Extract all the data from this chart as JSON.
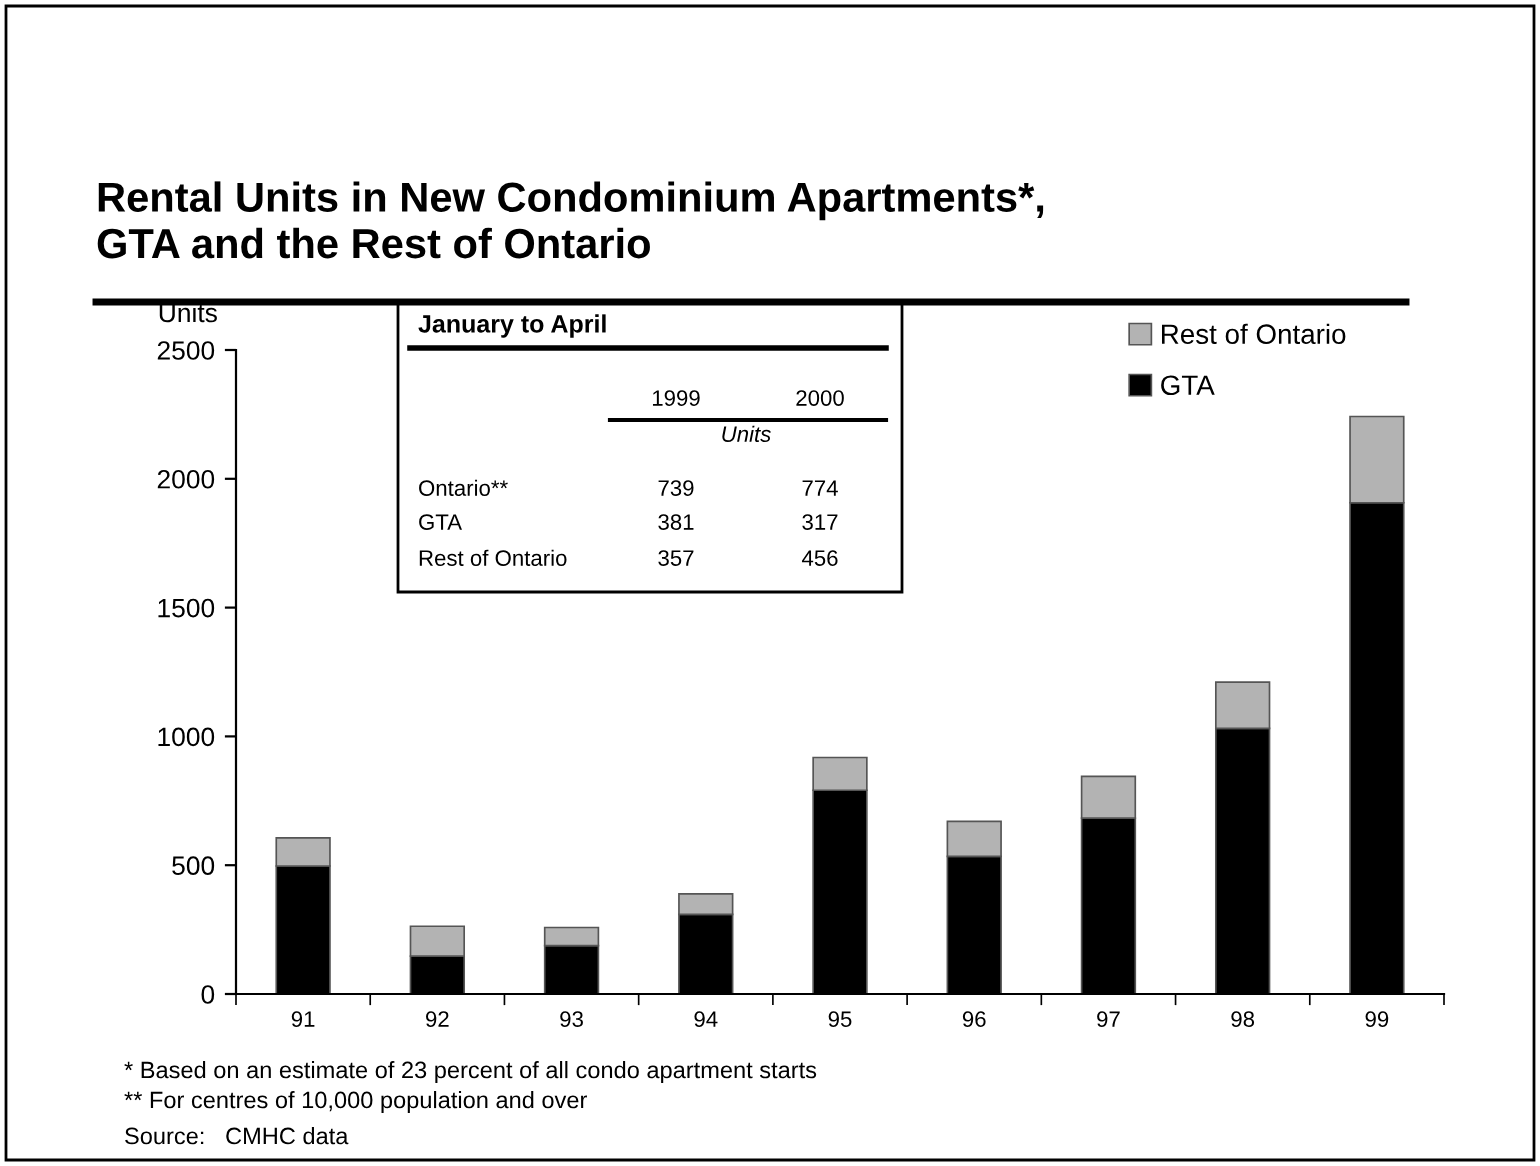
{
  "chart_data": {
    "type": "bar",
    "stacked": true,
    "title": "Rental Units in New Condominium Apartments*,\nGTA and the Rest of Ontario",
    "ylabel": "Units",
    "categories": [
      "91",
      "92",
      "93",
      "94",
      "95",
      "96",
      "97",
      "98",
      "99"
    ],
    "series": [
      {
        "name": "GTA",
        "color": "#000000",
        "values": [
          497,
          147,
          188,
          309,
          791,
          534,
          683,
          1031,
          1907
        ]
      },
      {
        "name": "Rest of Ontario",
        "color": "#b3b3b3",
        "values": [
          109,
          116,
          70,
          80,
          127,
          136,
          162,
          180,
          335
        ]
      }
    ],
    "ylim": [
      0,
      2500
    ],
    "yticks": [
      0,
      500,
      1000,
      1500,
      2000,
      2500
    ],
    "legend": "top right",
    "grid": false,
    "annotations": [
      "January to April",
      "1999",
      "2000",
      "Units",
      "Ontario**",
      "739",
      "774",
      "GTA",
      "381",
      "317",
      "Rest of Ontario",
      "357",
      "456",
      "* Based on an estimate of 23 percent of all condo apartment starts",
      "** For centres of 10,000 population and over",
      "Source:   CMHC data"
    ]
  }
}
